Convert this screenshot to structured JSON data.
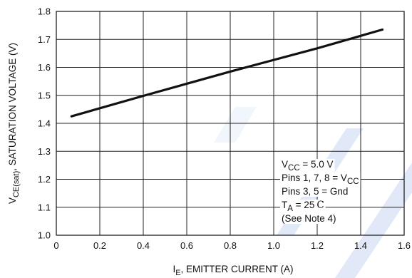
{
  "chart_data": {
    "type": "line",
    "xlabel": {
      "main": "I",
      "sub": "E",
      "rest": ", EMITTER CURRENT (A)"
    },
    "ylabel": {
      "main": "V",
      "sub": "CE(sat)",
      "rest": ", SATURATION VOLTAGE (V)"
    },
    "xlim": [
      0,
      1.6
    ],
    "ylim": [
      1.0,
      1.8
    ],
    "xticks": [
      "0",
      "0.2",
      "0.4",
      "0.6",
      "0.8",
      "1.0",
      "1.2",
      "1.4",
      "1.6"
    ],
    "yticks": [
      "1.0",
      "1.1",
      "1.2",
      "1.3",
      "1.4",
      "1.5",
      "1.6",
      "1.7",
      "1.8"
    ],
    "grid": true,
    "series": [
      {
        "x": [
          0.07,
          0.4,
          0.8,
          1.2,
          1.5
        ],
        "y": [
          1.425,
          1.498,
          1.585,
          1.668,
          1.735
        ]
      }
    ],
    "annotation": {
      "vcc": {
        "main": "V",
        "sub": "CC",
        "rest": " = 5.0 V"
      },
      "pins_vcc": {
        "main": "Pins 1, 7, 8 = V",
        "sub": "CC"
      },
      "pins_gnd": "Pins 3, 5 = Gnd",
      "ta": {
        "main": "T",
        "sub": "A",
        "rest": " = 25",
        "unit": "C"
      },
      "note": "(See Note 4)"
    },
    "colors": {
      "line": "#111111",
      "grid": "#222222",
      "watermark": "#c9d7f2"
    }
  }
}
